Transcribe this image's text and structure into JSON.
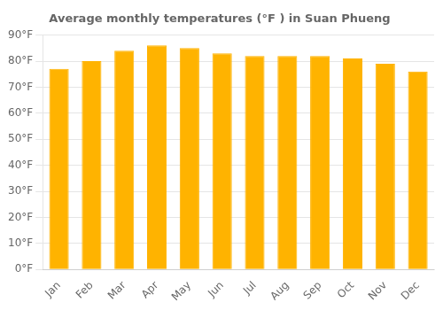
{
  "chart_data": {
    "type": "bar",
    "title": "Average monthly temperatures (°F ) in Suan Phueng",
    "categories": [
      "Jan",
      "Feb",
      "Mar",
      "Apr",
      "May",
      "Jun",
      "Jul",
      "Aug",
      "Sep",
      "Oct",
      "Nov",
      "Dec"
    ],
    "values": [
      77,
      80,
      84,
      86,
      85,
      83,
      82,
      82,
      82,
      81,
      79,
      76
    ],
    "color": "#FFB300",
    "ylim": [
      0,
      90
    ],
    "yticks": [
      {
        "value": 0,
        "label": "0°F"
      },
      {
        "value": 10,
        "label": "10°F"
      },
      {
        "value": 20,
        "label": "20°F"
      },
      {
        "value": 30,
        "label": "30°F"
      },
      {
        "value": 40,
        "label": "40°F"
      },
      {
        "value": 50,
        "label": "50°F"
      },
      {
        "value": 60,
        "label": "60°F"
      },
      {
        "value": 70,
        "label": "70°F"
      },
      {
        "value": 80,
        "label": "80°F"
      },
      {
        "value": 90,
        "label": "90°F"
      }
    ],
    "grid": true
  }
}
